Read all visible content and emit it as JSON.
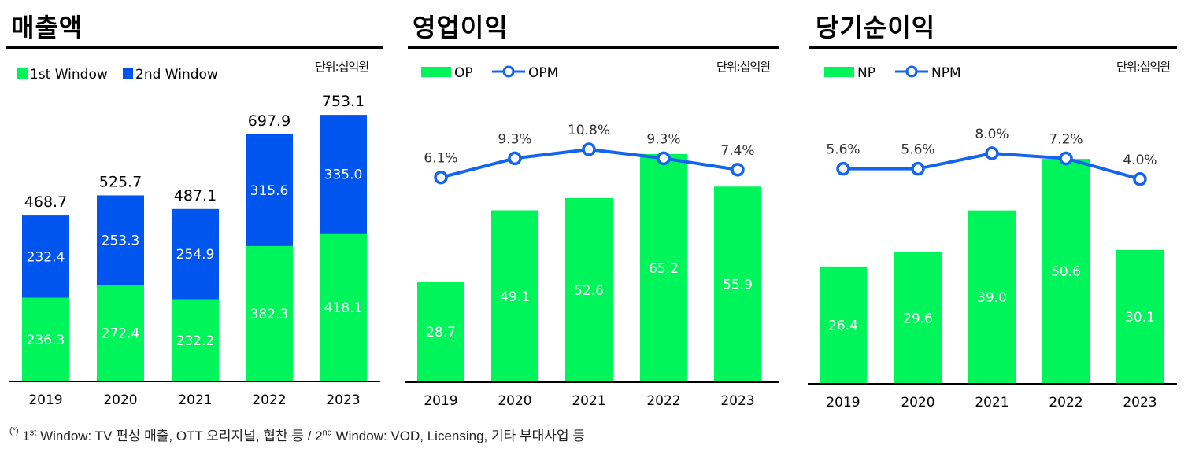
{
  "unit_label": "단위:십억원",
  "colors": {
    "green": "#00f55a",
    "blue": "#0055ee",
    "line": "#1464f0",
    "axis": "#000000"
  },
  "chart_data": [
    {
      "type": "bar",
      "stacked": true,
      "title": "매출액",
      "categories": [
        "2019",
        "2020",
        "2021",
        "2022",
        "2023"
      ],
      "series": [
        {
          "name": "1st Window",
          "values": [
            236.3,
            272.4,
            232.2,
            382.3,
            418.1
          ]
        },
        {
          "name": "2nd Window",
          "values": [
            232.4,
            253.3,
            254.9,
            315.6,
            335.0
          ]
        }
      ],
      "totals": [
        468.7,
        525.7,
        487.1,
        697.9,
        753.1
      ],
      "ylim": [
        0,
        800
      ]
    },
    {
      "type": "bar+line",
      "title": "영업이익",
      "categories": [
        "2019",
        "2020",
        "2021",
        "2022",
        "2023"
      ],
      "series": [
        {
          "name": "OP",
          "type": "bar",
          "values": [
            28.7,
            49.1,
            52.6,
            65.2,
            55.9
          ]
        },
        {
          "name": "OPM",
          "type": "line",
          "values": [
            6.1,
            9.3,
            10.8,
            9.3,
            7.4
          ],
          "labels": [
            "6.1%",
            "9.3%",
            "10.8%",
            "9.3%",
            "7.4%"
          ]
        }
      ]
    },
    {
      "type": "bar+line",
      "title": "당기순이익",
      "categories": [
        "2019",
        "2020",
        "2021",
        "2022",
        "2023"
      ],
      "series": [
        {
          "name": "NP",
          "type": "bar",
          "values": [
            26.4,
            29.6,
            39.0,
            50.6,
            30.1
          ]
        },
        {
          "name": "NPM",
          "type": "line",
          "values": [
            5.6,
            5.6,
            8.0,
            7.2,
            4.0
          ],
          "labels": [
            "5.6%",
            "5.6%",
            "8.0%",
            "7.2%",
            "4.0%"
          ]
        }
      ]
    }
  ],
  "footnote": {
    "mark": "(*)",
    "p1": " 1",
    "sup1": "st",
    "p2": " Window: TV 편성 매출, OTT 오리지널, 협찬 등 / 2",
    "sup2": "nd",
    "p3": " Window: VOD, Licensing, 기타 부대사업 등"
  }
}
